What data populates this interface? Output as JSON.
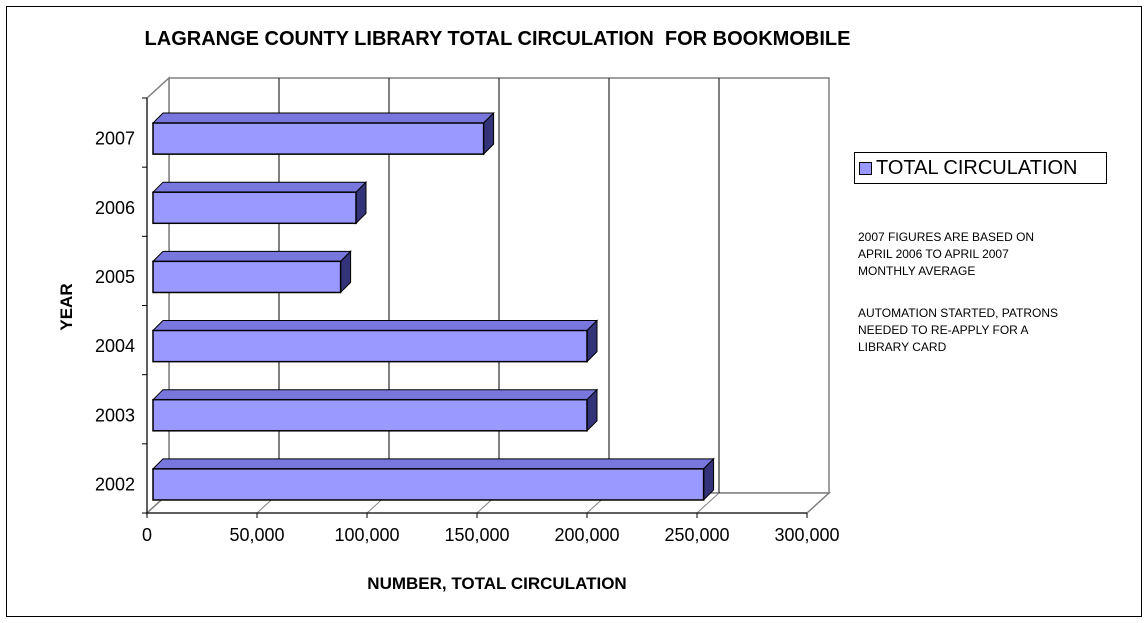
{
  "chart_data": {
    "type": "bar",
    "orientation": "horizontal",
    "title": "LAGRANGE COUNTY LIBRARY TOTAL CIRCULATION  FOR BOOKMOBILE",
    "xlabel": "NUMBER, TOTAL CIRCULATION",
    "ylabel": "YEAR",
    "categories": [
      "2002",
      "2003",
      "2004",
      "2005",
      "2006",
      "2007"
    ],
    "series": [
      {
        "name": "TOTAL CIRCULATION",
        "values": [
          253000,
          200000,
          200000,
          88000,
          95000,
          153000
        ]
      }
    ],
    "xlim": [
      0,
      300000
    ],
    "xticks": [
      "0",
      "50,000",
      "100,000",
      "150,000",
      "200,000",
      "250,000",
      "300,000"
    ],
    "grid": true,
    "legend_position": "right",
    "bar_color": "#9999ff",
    "annotations": [
      "2007 FIGURES ARE BASED ON\nAPRIL 2006 TO APRIL 2007\nMONTHLY AVERAGE",
      "AUTOMATION STARTED, PATRONS\nNEEDED TO RE-APPLY FOR A\nLIBRARY CARD"
    ]
  }
}
